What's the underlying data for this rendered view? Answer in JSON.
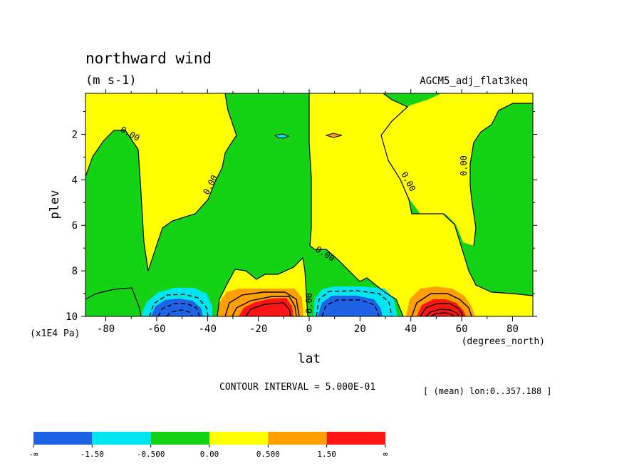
{
  "chart_data": {
    "type": "heatmap",
    "title": "northward wind",
    "units": "(m s-1)",
    "dataset": "AGCM5_adj_flat3keq",
    "xlabel": "lat",
    "xunits": "(degrees_north)",
    "ylabel": "plev",
    "yunits": "(x1E4 Pa)",
    "xlim": [
      -88,
      88
    ],
    "ylim": [
      0.2,
      10
    ],
    "y_inverted": true,
    "x_ticks": [
      "-80",
      "-60",
      "-40",
      "-20",
      "0",
      "20",
      "40",
      "60",
      "80"
    ],
    "y_ticks": [
      "2",
      "4",
      "6",
      "8",
      "10"
    ],
    "contour_labels": [
      "0.00",
      "0.00",
      "0.00",
      "0.00",
      "0.00",
      "0.00",
      "0.00"
    ],
    "contour_interval_text": "CONTOUR INTERVAL = 5.000E-01",
    "mean_note": "[ (mean) lon:0..357.188 ]",
    "levels": [
      "-∞",
      "-1.50",
      "-0.500",
      "0.00",
      "0.500",
      "1.50",
      "∞"
    ],
    "colors": [
      "#1e62e6",
      "#00e6f0",
      "#14d214",
      "#ffff00",
      "#ffa000",
      "#ff1414"
    ],
    "features": [
      {
        "sign": "negative",
        "lat": -52,
        "plev": 10,
        "peak": -3.0
      },
      {
        "sign": "positive",
        "lat": -15,
        "plev": 10,
        "peak": 3.0
      },
      {
        "sign": "negative",
        "lat": 12,
        "plev": 10,
        "peak": -2.5
      },
      {
        "sign": "positive",
        "lat": 52,
        "plev": 10,
        "peak": 3.5
      },
      {
        "sign": "negative",
        "lat": -10,
        "plev": 2,
        "peak": -0.6
      },
      {
        "sign": "positive",
        "lat": 10,
        "plev": 2,
        "peak": 0.6
      }
    ]
  }
}
